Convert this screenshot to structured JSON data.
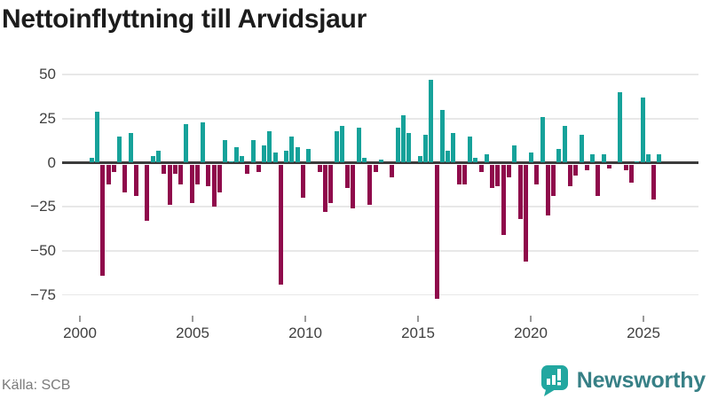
{
  "title": "Nettoinflyttning till Arvidsjaur",
  "source": "Källa: SCB",
  "branding": {
    "name": "Newsworthy",
    "icon": "newsworthy-speech-bubble-bar-chart-icon",
    "text_color": "#378086",
    "icon_color": "#22a7a0"
  },
  "colors": {
    "positive_bar": "#16a29a",
    "negative_bar": "#8f0a4b",
    "gridline": "#e8e8e8",
    "zero_line": "#3c3c3c",
    "axis_text": "#3f3f3f",
    "tick_mark": "#9a9a9a",
    "title_text": "#1c1c1c",
    "source_text": "#7b7b7b"
  },
  "chart_data": {
    "type": "bar",
    "title": "Nettoinflyttning till Arvidsjaur",
    "frequency": "quarterly",
    "x_start": "2000 Q1",
    "x_end": "2025 Q4",
    "values": [
      0,
      3,
      29,
      -63,
      -11,
      -4,
      15,
      -16,
      17,
      -18,
      0,
      -32,
      4,
      7,
      -5,
      -23,
      -5,
      -11,
      22,
      -22,
      -11,
      23,
      -12,
      -24,
      -16,
      13,
      1,
      9,
      4,
      -5,
      13,
      -4,
      10,
      18,
      6,
      -68,
      7,
      15,
      9,
      -19,
      8,
      0,
      -4,
      -27,
      -22,
      18,
      21,
      -13,
      -25,
      20,
      3,
      -23,
      -4,
      2,
      0,
      -7,
      20,
      27,
      17,
      0,
      4,
      16,
      47,
      -76,
      30,
      7,
      17,
      -11,
      -11,
      15,
      3,
      -4,
      5,
      -13,
      -12,
      -40,
      -7,
      10,
      -31,
      -55,
      6,
      -11,
      26,
      -29,
      -18,
      8,
      21,
      -12,
      -6,
      16,
      -3,
      5,
      -18,
      5,
      -2,
      0,
      40,
      -3,
      -10,
      1,
      37,
      5,
      -20,
      5
    ],
    "xticks": [
      "2000",
      "2005",
      "2010",
      "2015",
      "2020",
      "2025"
    ],
    "yticks": [
      {
        "label": "50",
        "value": 50
      },
      {
        "label": "25",
        "value": 25
      },
      {
        "label": "0",
        "value": 0
      },
      {
        "label": "−25",
        "value": -25
      },
      {
        "label": "−50",
        "value": -50
      },
      {
        "label": "−75",
        "value": -75
      }
    ],
    "ylim": [
      -80,
      55
    ],
    "grid": true,
    "legend": false
  }
}
